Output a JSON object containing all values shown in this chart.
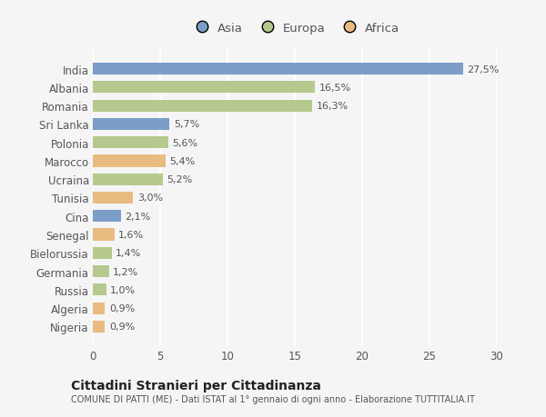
{
  "countries": [
    "India",
    "Albania",
    "Romania",
    "Sri Lanka",
    "Polonia",
    "Marocco",
    "Ucraina",
    "Tunisia",
    "Cina",
    "Senegal",
    "Bielorussia",
    "Germania",
    "Russia",
    "Algeria",
    "Nigeria"
  ],
  "values": [
    27.5,
    16.5,
    16.3,
    5.7,
    5.6,
    5.4,
    5.2,
    3.0,
    2.1,
    1.6,
    1.4,
    1.2,
    1.0,
    0.9,
    0.9
  ],
  "labels": [
    "27,5%",
    "16,5%",
    "16,3%",
    "5,7%",
    "5,6%",
    "5,4%",
    "5,2%",
    "3,0%",
    "2,1%",
    "1,6%",
    "1,4%",
    "1,2%",
    "1,0%",
    "0,9%",
    "0,9%"
  ],
  "continents": [
    "Asia",
    "Europa",
    "Europa",
    "Asia",
    "Europa",
    "Africa",
    "Europa",
    "Africa",
    "Asia",
    "Africa",
    "Europa",
    "Europa",
    "Europa",
    "Africa",
    "Africa"
  ],
  "colors": {
    "Asia": "#7b9dc8",
    "Europa": "#b5c98e",
    "Africa": "#e8bb80"
  },
  "bg_color": "#f5f5f5",
  "grid_color": "#ffffff",
  "title": "Cittadini Stranieri per Cittadinanza",
  "subtitle": "COMUNE DI PATTI (ME) - Dati ISTAT al 1° gennaio di ogni anno - Elaborazione TUTTITALIA.IT",
  "xlim": [
    0,
    30
  ],
  "xticks": [
    0,
    5,
    10,
    15,
    20,
    25,
    30
  ],
  "bar_height": 0.65
}
